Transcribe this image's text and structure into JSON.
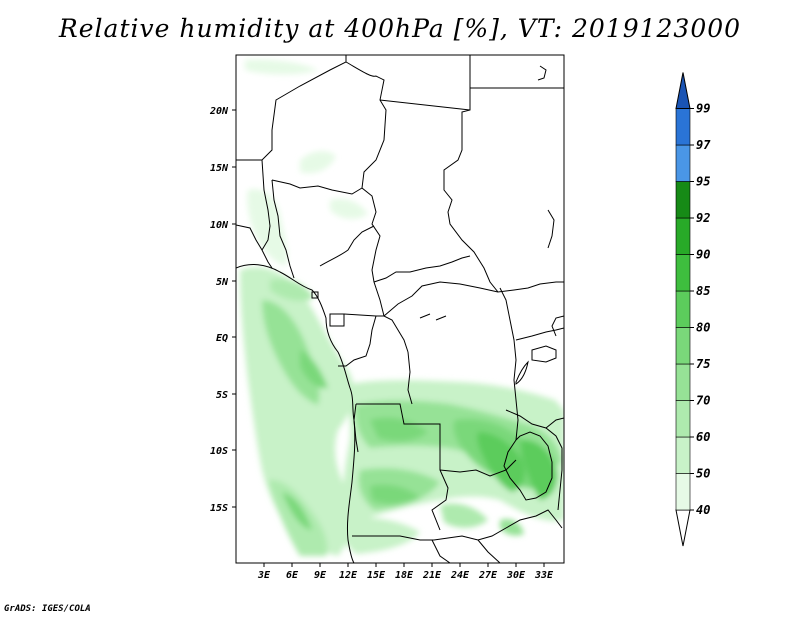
{
  "title": "Relative humidity at 400hPa [%], VT: 2019123000",
  "credit": "GrADS: IGES/COLA",
  "map": {
    "lat_labels": [
      "20N",
      "15N",
      "10N",
      "5N",
      "EQ",
      "5S",
      "10S",
      "15S"
    ],
    "lon_labels": [
      "3E",
      "6E",
      "9E",
      "12E",
      "15E",
      "18E",
      "21E",
      "24E",
      "27E",
      "30E",
      "33E"
    ]
  },
  "colorbar": {
    "levels": [
      "40",
      "50",
      "60",
      "70",
      "75",
      "80",
      "85",
      "90",
      "92",
      "95",
      "97",
      "99"
    ],
    "colors": [
      "#ffffff",
      "#e6fae6",
      "#c8f2c8",
      "#aeeaae",
      "#96e296",
      "#7ad87a",
      "#5ccc5c",
      "#3ebe3e",
      "#28aa28",
      "#168a16",
      "#4a96e6",
      "#2a74d6",
      "#1a54b4"
    ]
  }
}
